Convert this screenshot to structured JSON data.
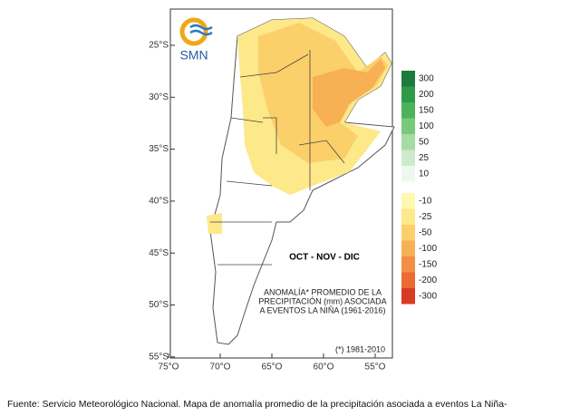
{
  "logo": {
    "text": "SMN"
  },
  "map": {
    "period": "OCT - NOV - DIC",
    "annotation": [
      "ANOMALÍA* PROMEDIO DE LA",
      "PRECIPITACIÓN (mm) ASOCIADA",
      "A EVENTOS LA NIÑA (1961-2016)"
    ],
    "footnote": "(*) 1981-2010",
    "lat_labels": [
      "25°S",
      "30°S",
      "35°S",
      "40°S",
      "45°S",
      "50°S",
      "55°S"
    ],
    "lon_labels": [
      "75°O",
      "70°O",
      "65°O",
      "60°O",
      "55°O"
    ]
  },
  "legend": {
    "positive": [
      {
        "label": "300",
        "color": "#1e7a3c"
      },
      {
        "label": "200",
        "color": "#2e9a48"
      },
      {
        "label": "150",
        "color": "#4cb35a"
      },
      {
        "label": "100",
        "color": "#78c97a"
      },
      {
        "label": "50",
        "color": "#a6dca4"
      },
      {
        "label": "25",
        "color": "#cdebcb"
      },
      {
        "label": "10",
        "color": "#eef8ee"
      }
    ],
    "negative": [
      {
        "label": "-10",
        "color": "#fff8b0"
      },
      {
        "label": "-25",
        "color": "#fde88a"
      },
      {
        "label": "-50",
        "color": "#fbcf6a"
      },
      {
        "label": "-100",
        "color": "#f7b054"
      },
      {
        "label": "-150",
        "color": "#f38f44"
      },
      {
        "label": "-200",
        "color": "#ec6a34"
      },
      {
        "label": "-300",
        "color": "#d93a22"
      }
    ]
  },
  "caption": "Fuente: Servicio Meteorológico Nacional. Mapa de anomalía promedio de la precipitación asociada a eventos La Niña-"
}
